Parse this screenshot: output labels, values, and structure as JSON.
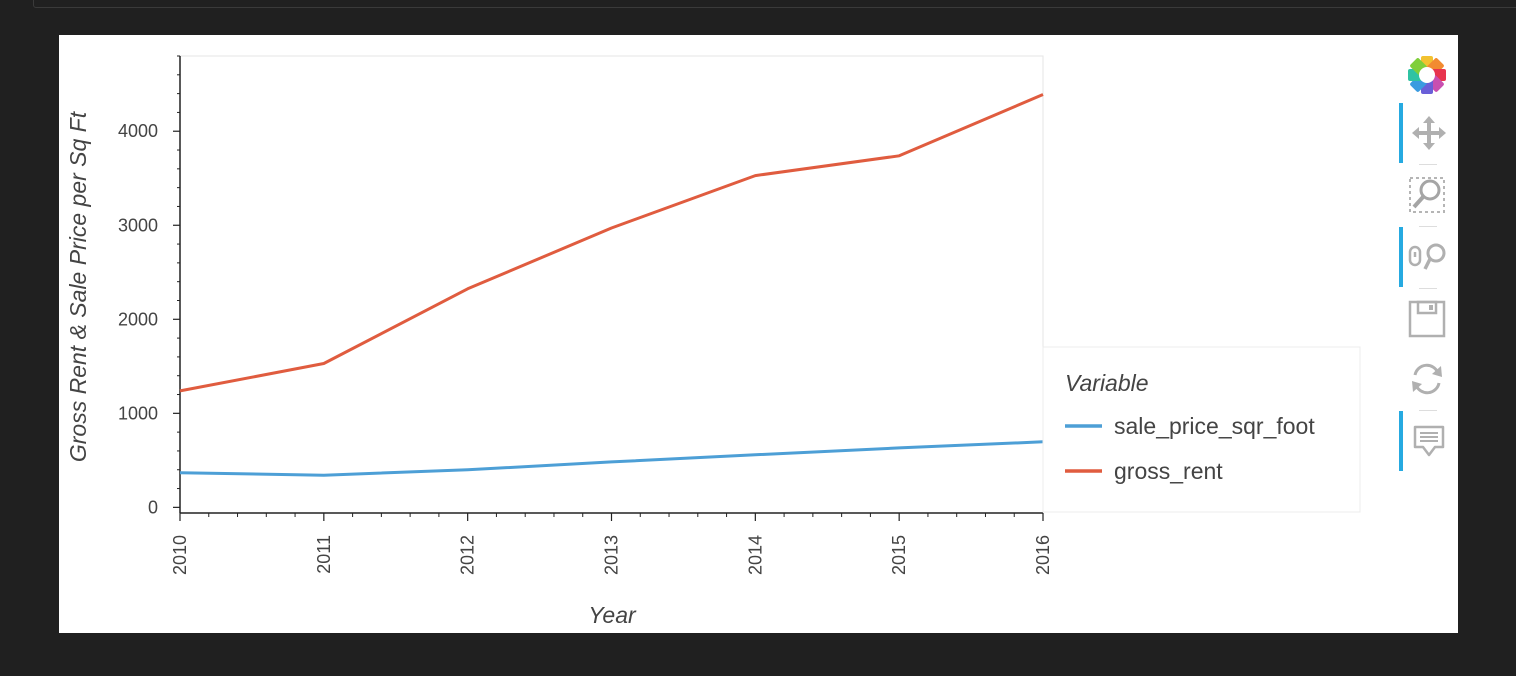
{
  "chart_data": {
    "type": "line",
    "x": [
      2010,
      2011,
      2012,
      2013,
      2014,
      2015,
      2016
    ],
    "series": [
      {
        "name": "sale_price_sqr_foot",
        "color": "#4d9fd6",
        "values": [
          369,
          342,
          399,
          483,
          559,
          632,
          697
        ]
      },
      {
        "name": "gross_rent",
        "color": "#e05c3f",
        "values": [
          1239,
          1530,
          2324,
          2971,
          3528,
          3739,
          4391
        ]
      }
    ],
    "xlabel": "Year",
    "ylabel": "Gross Rent & Sale Price per Sq Ft",
    "xlim": [
      2010,
      2016
    ],
    "ylim": [
      -60,
      4800
    ],
    "y_ticks": [
      0,
      1000,
      2000,
      3000,
      4000
    ],
    "x_tick_labels": [
      "2010",
      "2011",
      "2012",
      "2013",
      "2014",
      "2015",
      "2016"
    ],
    "x_tick_rotation": "vertical",
    "grid": false,
    "legend": {
      "title": "Variable",
      "placement": "right"
    }
  },
  "toolbar": {
    "items": [
      {
        "name": "bokeh-logo",
        "active": false
      },
      {
        "name": "pan-tool",
        "active": true
      },
      {
        "name": "box-zoom-tool",
        "active": false
      },
      {
        "name": "wheel-zoom-tool",
        "active": true
      },
      {
        "name": "save-tool",
        "active": false
      },
      {
        "name": "reset-tool",
        "active": false
      },
      {
        "name": "hover-tool",
        "active": true
      }
    ]
  }
}
